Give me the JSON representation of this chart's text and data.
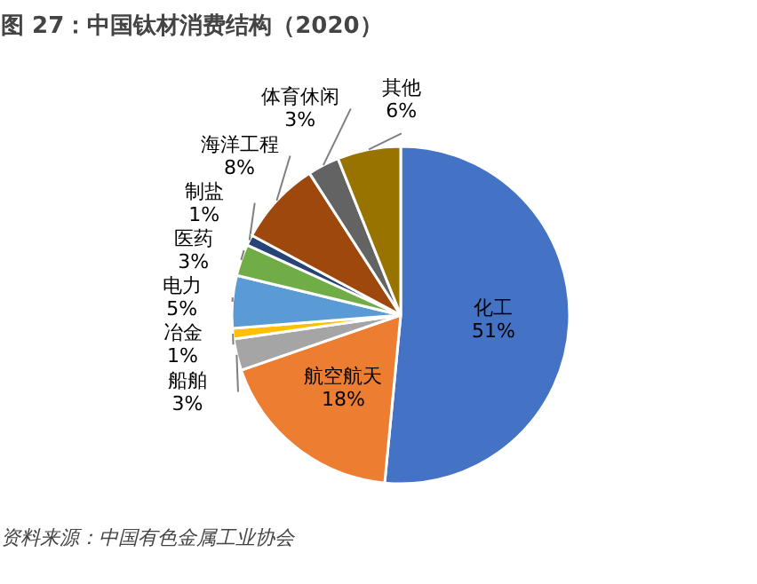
{
  "chart_data": {
    "type": "pie",
    "title": "图 27：中国钛材消费结构（2020）",
    "categories": [
      "化工",
      "航空航天",
      "船舶",
      "冶金",
      "电力",
      "医药",
      "制盐",
      "海洋工程",
      "体育休闲",
      "其他"
    ],
    "values": [
      51,
      18,
      3,
      1,
      5,
      3,
      1,
      8,
      3,
      6
    ],
    "colors": [
      "#4472c4",
      "#ed7d31",
      "#a5a5a5",
      "#ffc000",
      "#5b9bd5",
      "#70ad47",
      "#264478",
      "#9e480e",
      "#636363",
      "#997300"
    ],
    "value_labels": [
      "51%",
      "18%",
      "3%",
      "1%",
      "5%",
      "3%",
      "1%",
      "8%",
      "3%",
      "6%"
    ],
    "annotations": [
      "资料来源：中国有色金属工业协会"
    ]
  }
}
